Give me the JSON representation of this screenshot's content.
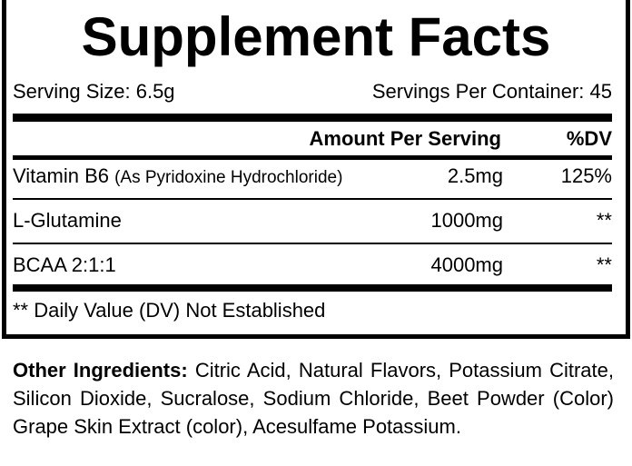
{
  "title": "Supplement Facts",
  "serving_size": "Serving Size: 6.5g",
  "servings_per_container": "Servings Per Container: 45",
  "header": {
    "amount": "Amount Per Serving",
    "dv": "%DV"
  },
  "rows": [
    {
      "name": "Vitamin B6",
      "note": "(As Pyridoxine Hydrochloride)",
      "amount": "2.5mg",
      "dv": "125%"
    },
    {
      "name": "L-Glutamine",
      "amount": "1000mg",
      "dv": "**"
    },
    {
      "name": "BCAA 2:1:1",
      "amount": "4000mg",
      "dv": "**"
    }
  ],
  "footnote": "** Daily Value (DV) Not Established",
  "other_ingredients": {
    "label": "Other Ingredients:",
    "text": " Citric Acid, Natural Flavors, Potassium Citrate, Silicon Dioxide, Sucralose, Sodium Chloride, Beet Powder (Color) Grape Skin Extract (color), Acesulfame Potassium."
  }
}
